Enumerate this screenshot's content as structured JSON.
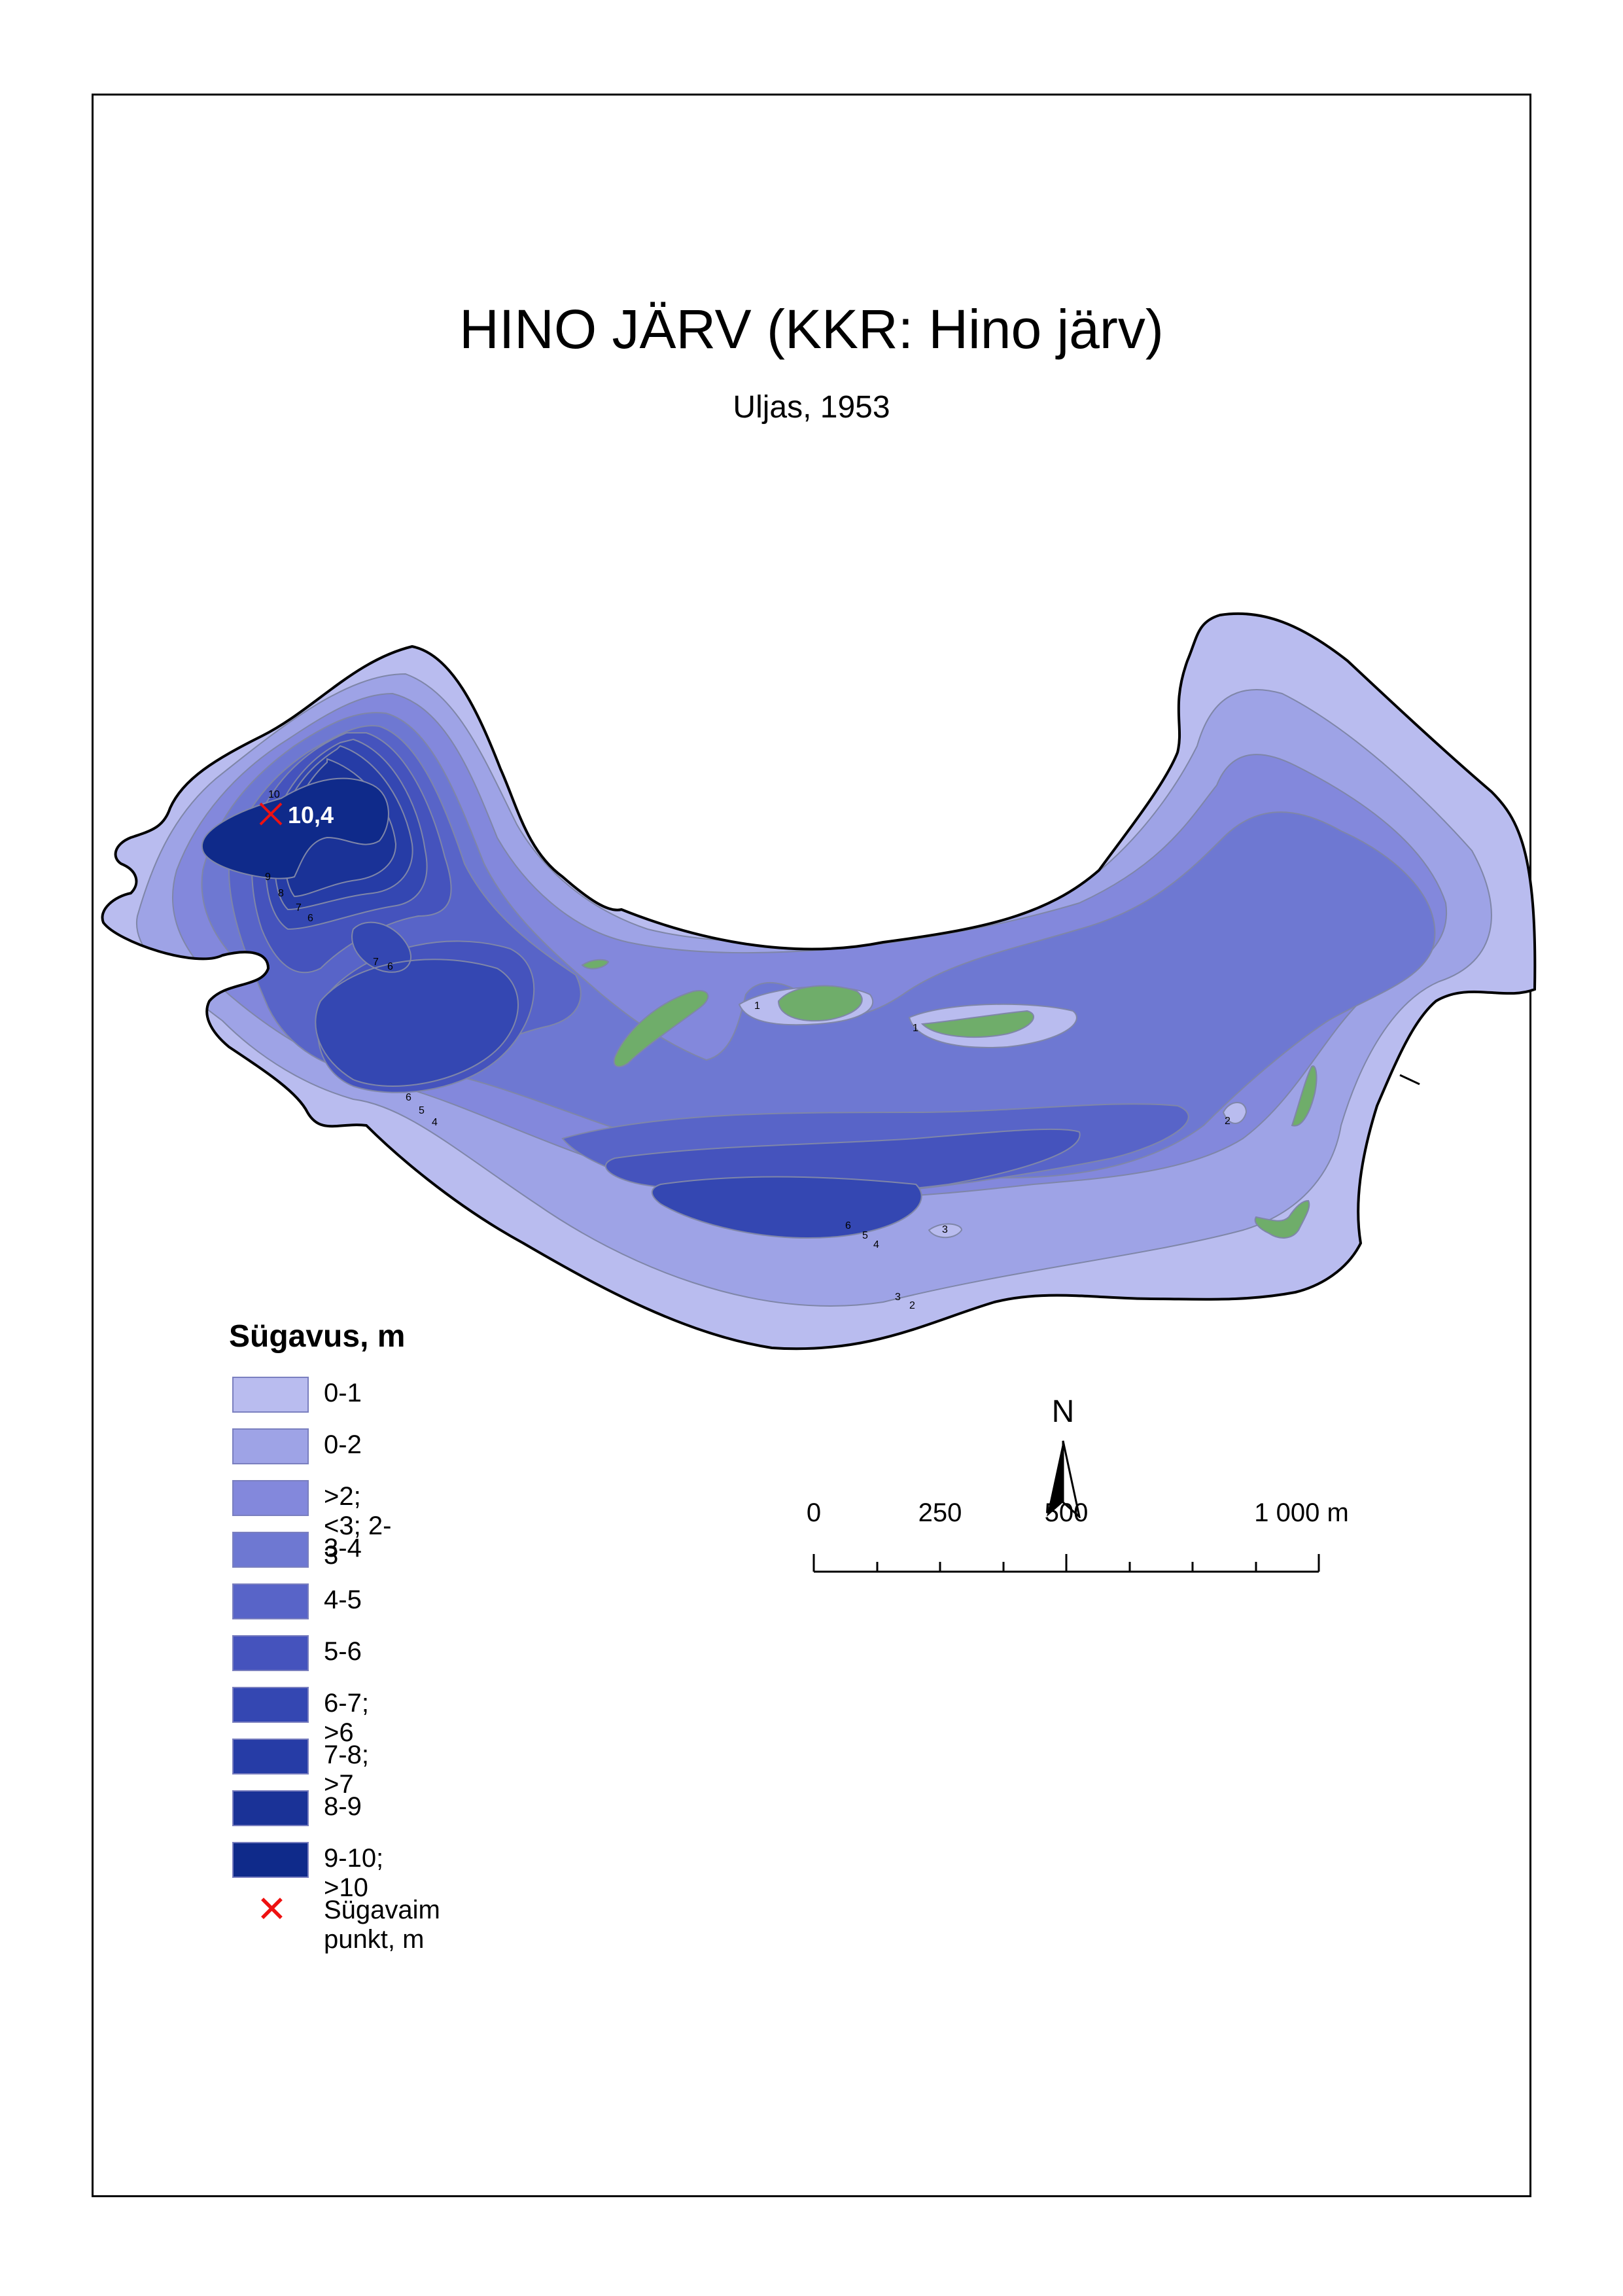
{
  "title": "HINO JÄRV (KKR: Hino järv)",
  "subtitle": "Uljas, 1953",
  "deepest_point": {
    "value_label": "10,4"
  },
  "depth_labels": [
    "10",
    "9",
    "8",
    "7",
    "6",
    "7",
    "6",
    "6",
    "5",
    "4",
    "1",
    "1",
    "2",
    "6",
    "5",
    "4",
    "3",
    "3",
    "2"
  ],
  "legend": {
    "title": "Sügavus, m",
    "items": [
      {
        "label": "0-1",
        "color": "#b9bcef"
      },
      {
        "label": "0-2",
        "color": "#9ea3e6"
      },
      {
        "label": ">2; <3; 2-3",
        "color": "#8388dc"
      },
      {
        "label": "3-4",
        "color": "#6e78d2"
      },
      {
        "label": "4-5",
        "color": "#5864c8"
      },
      {
        "label": "5-6",
        "color": "#4553bd"
      },
      {
        "label": "6-7; >6",
        "color": "#3447b2"
      },
      {
        "label": "7-8; >7",
        "color": "#263ca6"
      },
      {
        "label": "8-9",
        "color": "#1a3297"
      },
      {
        "label": "9-10; >10",
        "color": "#0f2a8a"
      }
    ],
    "marker_label": "Sügavaim punkt, m",
    "marker_color": "#ee1111"
  },
  "north_arrow": {
    "letter": "N"
  },
  "scale_bar": {
    "labels": [
      "0",
      "250",
      "500",
      "1 000 m"
    ]
  },
  "colors": {
    "island": "#6fad6a",
    "shore_line": "#000000",
    "contour_line": "#7f86a8"
  }
}
